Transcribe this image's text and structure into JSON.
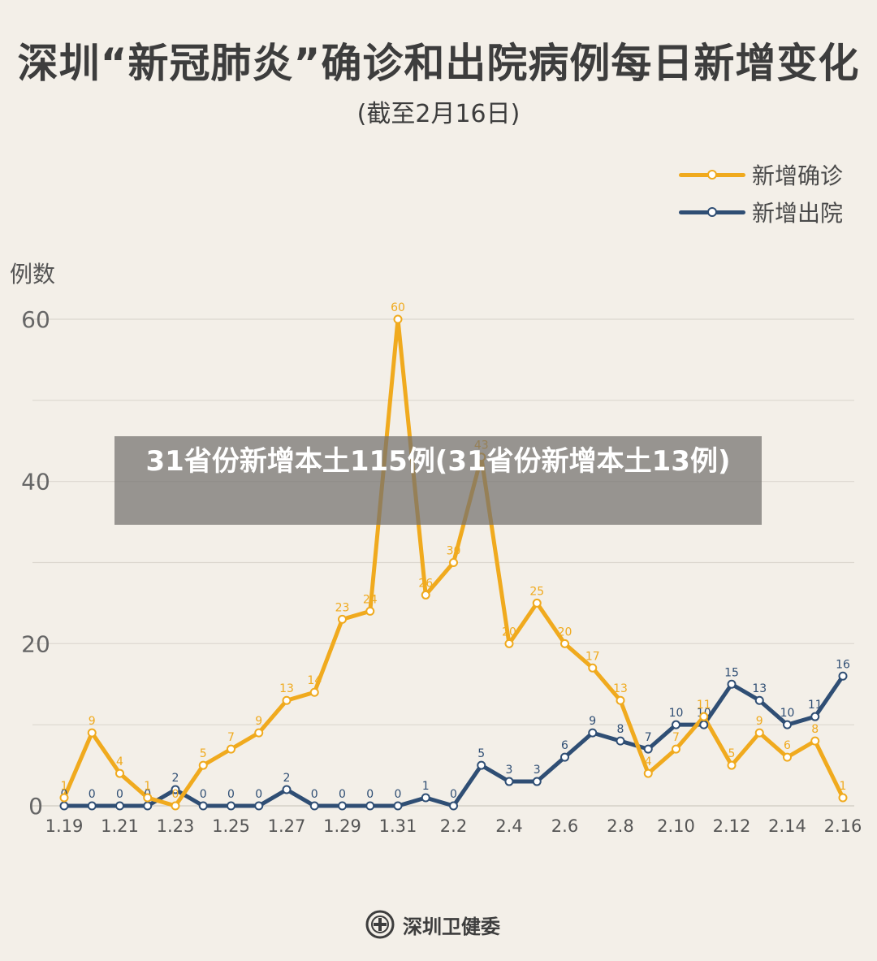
{
  "header": {
    "title": "深圳“新冠肺炎”确诊和出院病例每日新增变化",
    "subtitle": "(截至2月16日)"
  },
  "overlay": {
    "text": "31省份新增本土115例(31省份新增本土13例)"
  },
  "footer": {
    "org": "深圳卫健委",
    "logo_icon": "health-commission-emblem-icon"
  },
  "colors": {
    "confirmed": "#f0aa1e",
    "discharged": "#2f4e74",
    "grid": "#dcd7cf",
    "background": "#f3efe8"
  },
  "chart_data": {
    "type": "line",
    "title": "深圳“新冠肺炎”确诊和出院病例每日新增变化",
    "subtitle": "(截至2月16日)",
    "xlabel": "",
    "ylabel": "例数",
    "ylim": [
      0,
      60
    ],
    "yticks": [
      0,
      20,
      40,
      60
    ],
    "grid": true,
    "legend_position": "top-right",
    "x": [
      "1.19",
      "1.20",
      "1.21",
      "1.22",
      "1.23",
      "1.24",
      "1.25",
      "1.26",
      "1.27",
      "1.28",
      "1.29",
      "1.30",
      "1.31",
      "2.1",
      "2.2",
      "2.3",
      "2.4",
      "2.5",
      "2.6",
      "2.7",
      "2.8",
      "2.9",
      "2.10",
      "2.11",
      "2.12",
      "2.13",
      "2.14",
      "2.15",
      "2.16"
    ],
    "xtick_labels": [
      "1.19",
      "1.21",
      "1.23",
      "1.25",
      "1.27",
      "1.29",
      "1.31",
      "2.2",
      "2.4",
      "2.6",
      "2.8",
      "2.10",
      "2.12",
      "2.14",
      "2.16"
    ],
    "series": [
      {
        "name": "新增确诊",
        "values": [
          1,
          9,
          4,
          1,
          0,
          5,
          7,
          9,
          13,
          14,
          23,
          24,
          60,
          26,
          30,
          43,
          20,
          25,
          20,
          17,
          13,
          4,
          7,
          11,
          5,
          9,
          6,
          8,
          1
        ]
      },
      {
        "name": "新增出院",
        "values": [
          0,
          0,
          0,
          0,
          2,
          0,
          0,
          0,
          2,
          0,
          0,
          0,
          0,
          1,
          0,
          5,
          3,
          3,
          6,
          9,
          8,
          7,
          10,
          10,
          15,
          13,
          10,
          11,
          16
        ]
      }
    ]
  }
}
